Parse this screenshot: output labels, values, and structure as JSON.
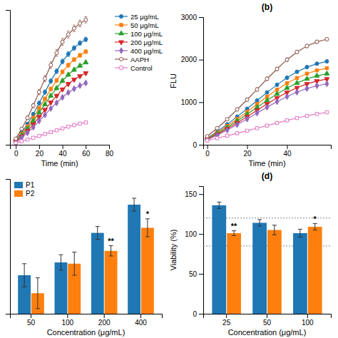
{
  "chart_data": [
    {
      "type": "line",
      "xlabel": "Time (min)",
      "x": [
        0,
        5,
        10,
        15,
        20,
        25,
        30,
        35,
        40,
        45,
        50,
        55,
        60
      ],
      "xlim": [
        -5,
        80
      ],
      "xticks": [
        0,
        20,
        40,
        60,
        80
      ],
      "ylim": [
        0,
        1100
      ],
      "yticks": [],
      "tick_labels": "x",
      "legend": "right",
      "series": [
        {
          "name": "25 μg/mL",
          "marker": "circle",
          "values": [
            40,
            100,
            170,
            250,
            340,
            430,
            520,
            600,
            680,
            740,
            790,
            830,
            860
          ],
          "errors": [
            4,
            8,
            11,
            14,
            16,
            18,
            19,
            20,
            20,
            20,
            19,
            19,
            18
          ]
        },
        {
          "name": "50 μg/mL",
          "marker": "square",
          "values": [
            35,
            88,
            150,
            220,
            300,
            375,
            455,
            525,
            595,
            650,
            695,
            730,
            760
          ],
          "errors": [
            4,
            7,
            10,
            12,
            14,
            15,
            16,
            17,
            17,
            17,
            16,
            16,
            15
          ]
        },
        {
          "name": "100 μg/mL",
          "marker": "triangle-up",
          "values": [
            30,
            78,
            132,
            193,
            263,
            330,
            400,
            462,
            522,
            572,
            612,
            645,
            672
          ],
          "errors": [
            3,
            6,
            8,
            10,
            12,
            13,
            14,
            15,
            15,
            14,
            14,
            13,
            13
          ]
        },
        {
          "name": "200 μg/mL",
          "marker": "triangle-down",
          "values": [
            25,
            68,
            114,
            167,
            228,
            285,
            346,
            400,
            452,
            496,
            532,
            560,
            585
          ],
          "errors": [
            3,
            5,
            7,
            9,
            10,
            11,
            12,
            12,
            12,
            12,
            11,
            11,
            11
          ]
        },
        {
          "name": "400 μg/mL",
          "marker": "diamond",
          "values": [
            20,
            58,
            97,
            142,
            194,
            244,
            296,
            342,
            387,
            426,
            457,
            483,
            504
          ],
          "errors": [
            3,
            4,
            6,
            7,
            9,
            10,
            10,
            11,
            11,
            10,
            10,
            10,
            10
          ]
        },
        {
          "name": "AAPH",
          "marker": "circle-open",
          "values": [
            50,
            130,
            220,
            320,
            430,
            540,
            650,
            750,
            840,
            900,
            950,
            990,
            1020
          ],
          "errors": [
            5,
            10,
            14,
            18,
            22,
            25,
            27,
            28,
            28,
            28,
            27,
            26,
            25
          ]
        },
        {
          "name": "Control",
          "marker": "square-open",
          "values": [
            15,
            28,
            42,
            57,
            72,
            88,
            103,
            118,
            133,
            148,
            160,
            172,
            182
          ],
          "errors": [
            2,
            3,
            3,
            3,
            4,
            4,
            4,
            4,
            4,
            4,
            4,
            4,
            4
          ]
        }
      ]
    },
    {
      "type": "line",
      "title": "(b)",
      "xlabel": "Time (min)",
      "ylabel": "FLU",
      "x": [
        0,
        5,
        10,
        15,
        20,
        25,
        30,
        35,
        40,
        45,
        50,
        55,
        60
      ],
      "xlim": [
        -2,
        62
      ],
      "xticks": [
        0,
        20,
        40
      ],
      "ylim": [
        0,
        3000
      ],
      "yticks": [
        0,
        1000,
        2000,
        3000
      ],
      "series": [
        {
          "marker": "circle",
          "values": [
            160,
            310,
            480,
            660,
            845,
            1040,
            1230,
            1410,
            1575,
            1715,
            1825,
            1905,
            1960
          ],
          "errors": [
            10,
            16,
            22,
            27,
            30,
            33,
            34,
            35,
            35,
            34,
            33,
            32,
            30
          ]
        },
        {
          "marker": "square",
          "values": [
            150,
            285,
            440,
            605,
            775,
            955,
            1130,
            1295,
            1445,
            1570,
            1672,
            1748,
            1800
          ],
          "errors": [
            10,
            15,
            20,
            24,
            27,
            29,
            31,
            32,
            32,
            31,
            30,
            29,
            28
          ]
        },
        {
          "marker": "triangle-up",
          "values": [
            140,
            265,
            405,
            558,
            715,
            880,
            1042,
            1195,
            1334,
            1452,
            1548,
            1620,
            1670
          ],
          "errors": [
            8,
            13,
            18,
            22,
            24,
            26,
            28,
            29,
            29,
            28,
            27,
            27,
            26
          ]
        },
        {
          "marker": "triangle-down",
          "values": [
            130,
            245,
            374,
            515,
            658,
            812,
            960,
            1102,
            1230,
            1340,
            1430,
            1498,
            1545
          ],
          "errors": [
            8,
            12,
            16,
            20,
            22,
            24,
            25,
            26,
            26,
            26,
            25,
            25,
            24
          ]
        },
        {
          "marker": "diamond",
          "values": [
            120,
            225,
            344,
            472,
            604,
            746,
            882,
            1014,
            1132,
            1236,
            1322,
            1387,
            1432
          ],
          "errors": [
            7,
            11,
            15,
            18,
            20,
            22,
            23,
            24,
            24,
            24,
            23,
            23,
            22
          ]
        },
        {
          "marker": "circle-open",
          "values": [
            200,
            390,
            600,
            830,
            1060,
            1300,
            1550,
            1780,
            2000,
            2180,
            2320,
            2420,
            2480
          ],
          "errors": [
            15,
            22,
            30,
            35,
            40,
            42,
            44,
            44,
            44,
            42,
            40,
            38,
            36
          ]
        },
        {
          "marker": "square-open",
          "values": [
            100,
            155,
            212,
            270,
            328,
            390,
            450,
            512,
            572,
            628,
            680,
            725,
            762
          ],
          "errors": [
            5,
            7,
            8,
            9,
            10,
            10,
            11,
            11,
            12,
            12,
            13,
            13,
            13
          ]
        }
      ]
    },
    {
      "type": "bar",
      "xlabel": "Concentration (μg/mL)",
      "categories": [
        "50",
        "100",
        "200",
        "400"
      ],
      "ylim": [
        55,
        160
      ],
      "yticks": [],
      "tick_labels": "x",
      "legend": "upper left",
      "series": [
        {
          "name": "P1",
          "values": [
            85,
            95,
            118,
            140
          ],
          "errors": [
            9,
            6,
            5,
            5
          ]
        },
        {
          "name": "P2",
          "values": [
            71,
            94,
            104,
            122
          ],
          "errors": [
            12,
            9,
            4,
            7
          ]
        }
      ],
      "annotations": [
        {
          "text": "**",
          "category": "200",
          "series": 1
        },
        {
          "text": "*",
          "category": "400",
          "series": 1
        }
      ]
    },
    {
      "type": "bar",
      "title": "(d)",
      "xlabel": "Concentration (μg/mL)",
      "ylabel": "Viability (%)",
      "categories": [
        "25",
        "50",
        "100"
      ],
      "ylim": [
        0,
        160
      ],
      "yticks": [
        0,
        50,
        100,
        150
      ],
      "hlines": [
        85,
        120
      ],
      "series": [
        {
          "values": [
            136,
            114,
            101
          ],
          "errors": [
            4,
            4,
            5
          ]
        },
        {
          "values": [
            101,
            105,
            109
          ],
          "errors": [
            3,
            6,
            4
          ]
        }
      ],
      "annotations": [
        {
          "text": "**",
          "category": "25",
          "series": 1
        },
        {
          "text": "*",
          "category": "100",
          "series": 1
        }
      ]
    }
  ]
}
